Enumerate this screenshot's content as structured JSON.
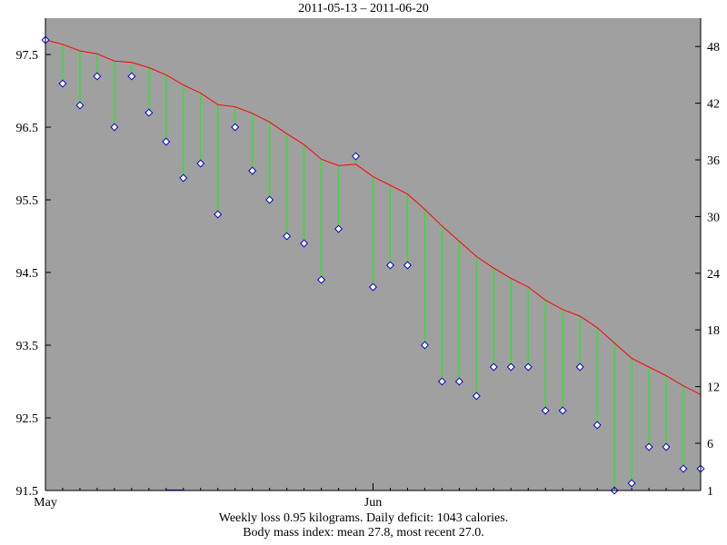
{
  "title": "2011-05-13 – 2011-06-20",
  "footer": {
    "line1": "Weekly loss 0.95 kilograms.  Daily deficit: 1043 calories.",
    "line2": "Body mass index: mean 27.8, most recent 27.0."
  },
  "colors": {
    "plot_background": "#a0a0a0",
    "trend_line": "#ff0000",
    "residual_lines": "#00ff00",
    "marker_fill": "#ffffff",
    "marker_edge": "#0000cc",
    "bottom_bar": "#0000ff"
  },
  "chart_data": {
    "type": "line",
    "x_start": "2011-05-13",
    "x_end": "2011-06-20",
    "x_ticks": [
      {
        "date": "2011-05-13",
        "label": "May"
      },
      {
        "date": "2011-06-01",
        "label": "Jun"
      }
    ],
    "left_axis": {
      "ylim": [
        91.5,
        98.0
      ],
      "ticks": [
        "91.5",
        "92.5",
        "93.5",
        "94.5",
        "95.5",
        "96.5",
        "97.5"
      ]
    },
    "right_axis": {
      "ylim": [
        1,
        51
      ],
      "ticks": [
        "1",
        "6",
        "12",
        "18",
        "24",
        "30",
        "36",
        "42",
        "48"
      ]
    },
    "grid": false,
    "series": [
      {
        "kind": "daily",
        "x": [
          "2011-05-13",
          "2011-05-14",
          "2011-05-15",
          "2011-05-16",
          "2011-05-17",
          "2011-05-18",
          "2011-05-19",
          "2011-05-20",
          "2011-05-21",
          "2011-05-22",
          "2011-05-23",
          "2011-05-24",
          "2011-05-25",
          "2011-05-26",
          "2011-05-27",
          "2011-05-28",
          "2011-05-29",
          "2011-05-30",
          "2011-05-31",
          "2011-06-01",
          "2011-06-02",
          "2011-06-03",
          "2011-06-04",
          "2011-06-05",
          "2011-06-06",
          "2011-06-07",
          "2011-06-08",
          "2011-06-09",
          "2011-06-10",
          "2011-06-11",
          "2011-06-12",
          "2011-06-13",
          "2011-06-14",
          "2011-06-15",
          "2011-06-16",
          "2011-06-17",
          "2011-06-18",
          "2011-06-19",
          "2011-06-20"
        ],
        "values": [
          97.7,
          97.1,
          96.8,
          97.2,
          96.5,
          97.2,
          96.7,
          96.3,
          95.8,
          96.0,
          95.3,
          96.5,
          95.9,
          95.5,
          95.0,
          94.9,
          94.4,
          95.1,
          96.1,
          94.3,
          94.6,
          94.6,
          93.5,
          93.0,
          93.0,
          92.8,
          93.2,
          93.2,
          93.2,
          92.6,
          92.6,
          93.2,
          92.4,
          91.5,
          91.6,
          92.1,
          92.1,
          91.8,
          91.8
        ]
      },
      {
        "kind": "trend",
        "x": [
          "2011-05-13",
          "2011-05-14",
          "2011-05-15",
          "2011-05-16",
          "2011-05-17",
          "2011-05-18",
          "2011-05-19",
          "2011-05-20",
          "2011-05-21",
          "2011-05-22",
          "2011-05-23",
          "2011-05-24",
          "2011-05-25",
          "2011-05-26",
          "2011-05-27",
          "2011-05-28",
          "2011-05-29",
          "2011-05-30",
          "2011-05-31",
          "2011-06-01",
          "2011-06-02",
          "2011-06-03",
          "2011-06-04",
          "2011-06-05",
          "2011-06-06",
          "2011-06-07",
          "2011-06-08",
          "2011-06-09",
          "2011-06-10",
          "2011-06-11",
          "2011-06-12",
          "2011-06-13",
          "2011-06-14",
          "2011-06-15",
          "2011-06-16",
          "2011-06-17",
          "2011-06-18",
          "2011-06-19",
          "2011-06-20"
        ],
        "values": [
          97.7,
          97.64,
          97.55,
          97.51,
          97.41,
          97.39,
          97.32,
          97.22,
          97.08,
          96.97,
          96.81,
          96.78,
          96.69,
          96.57,
          96.41,
          96.26,
          96.06,
          95.97,
          95.99,
          95.82,
          95.7,
          95.58,
          95.37,
          95.14,
          94.93,
          94.72,
          94.56,
          94.42,
          94.3,
          94.12,
          93.99,
          93.9,
          93.74,
          93.53,
          93.32,
          93.2,
          93.08,
          92.94,
          92.82
        ]
      }
    ]
  }
}
